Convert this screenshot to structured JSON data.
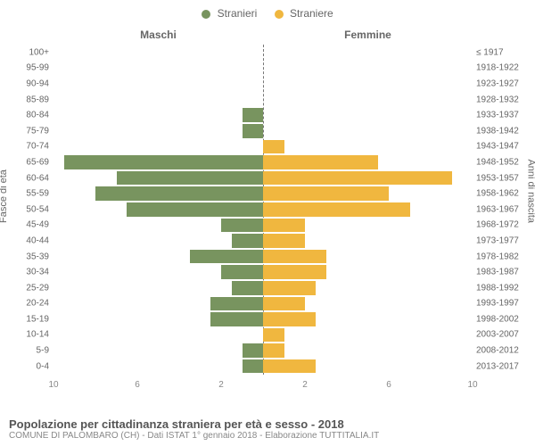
{
  "chart": {
    "type": "population-pyramid",
    "legend": [
      {
        "label": "Stranieri",
        "color": "#78945f"
      },
      {
        "label": "Straniere",
        "color": "#f0b73f"
      }
    ],
    "headers": {
      "left": "Maschi",
      "right": "Femmine"
    },
    "y_label_left": "Fasce di età",
    "y_label_right": "Anni di nascita",
    "x_max": 10,
    "x_ticks_left": [
      10,
      6,
      2
    ],
    "x_ticks_right": [
      2,
      6,
      10
    ],
    "bar_colors": {
      "left": "#78945f",
      "right": "#f0b73f"
    },
    "rows": [
      {
        "age": "100+",
        "birth": "≤ 1917",
        "m": 0,
        "f": 0
      },
      {
        "age": "95-99",
        "birth": "1918-1922",
        "m": 0,
        "f": 0
      },
      {
        "age": "90-94",
        "birth": "1923-1927",
        "m": 0,
        "f": 0
      },
      {
        "age": "85-89",
        "birth": "1928-1932",
        "m": 0,
        "f": 0
      },
      {
        "age": "80-84",
        "birth": "1933-1937",
        "m": 1,
        "f": 0
      },
      {
        "age": "75-79",
        "birth": "1938-1942",
        "m": 1,
        "f": 0
      },
      {
        "age": "70-74",
        "birth": "1943-1947",
        "m": 0,
        "f": 1
      },
      {
        "age": "65-69",
        "birth": "1948-1952",
        "m": 9.5,
        "f": 5.5
      },
      {
        "age": "60-64",
        "birth": "1953-1957",
        "m": 7,
        "f": 9
      },
      {
        "age": "55-59",
        "birth": "1958-1962",
        "m": 8,
        "f": 6
      },
      {
        "age": "50-54",
        "birth": "1963-1967",
        "m": 6.5,
        "f": 7
      },
      {
        "age": "45-49",
        "birth": "1968-1972",
        "m": 2,
        "f": 2
      },
      {
        "age": "40-44",
        "birth": "1973-1977",
        "m": 1.5,
        "f": 2
      },
      {
        "age": "35-39",
        "birth": "1978-1982",
        "m": 3.5,
        "f": 3
      },
      {
        "age": "30-34",
        "birth": "1983-1987",
        "m": 2,
        "f": 3
      },
      {
        "age": "25-29",
        "birth": "1988-1992",
        "m": 1.5,
        "f": 2.5
      },
      {
        "age": "20-24",
        "birth": "1993-1997",
        "m": 2.5,
        "f": 2
      },
      {
        "age": "15-19",
        "birth": "1998-2002",
        "m": 2.5,
        "f": 2.5
      },
      {
        "age": "10-14",
        "birth": "2003-2007",
        "m": 0,
        "f": 1
      },
      {
        "age": "5-9",
        "birth": "2008-2012",
        "m": 1,
        "f": 1
      },
      {
        "age": "0-4",
        "birth": "2013-2017",
        "m": 1,
        "f": 2.5
      }
    ]
  },
  "footer": {
    "title": "Popolazione per cittadinanza straniera per età e sesso - 2018",
    "subtitle": "COMUNE DI PALOMBARO (CH) - Dati ISTAT 1° gennaio 2018 - Elaborazione TUTTITALIA.IT"
  }
}
